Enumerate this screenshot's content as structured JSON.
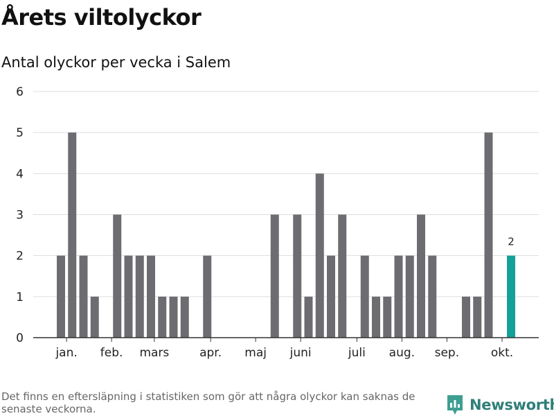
{
  "header": {
    "title": "Årets viltolyckor",
    "subtitle": "Antal olyckor per vecka i Salem"
  },
  "footer": {
    "note": "Det finns en eftersläpning i statistiken som gör att några olyckor kan saknas de senaste veckorna.",
    "brand": "Newsworthy"
  },
  "colors": {
    "bar": "#6d6c71",
    "highlight": "#16a09a",
    "brand": "#2f7f78",
    "grid": "#dddddd",
    "axis": "#333333"
  },
  "chart_data": {
    "type": "bar",
    "title": "Antal olyckor per vecka i Salem",
    "xlabel": "",
    "ylabel": "",
    "ylim": [
      0,
      6
    ],
    "yticks": [
      0,
      1,
      2,
      3,
      4,
      5,
      6
    ],
    "grid": true,
    "week_range": [
      1,
      43
    ],
    "values": [
      0,
      2,
      5,
      2,
      1,
      0,
      3,
      2,
      2,
      2,
      1,
      1,
      1,
      0,
      2,
      0,
      0,
      0,
      0,
      0,
      3,
      0,
      3,
      1,
      4,
      2,
      3,
      0,
      2,
      1,
      1,
      2,
      2,
      3,
      2,
      0,
      0,
      1,
      1,
      5,
      0,
      2
    ],
    "highlight_index": 41,
    "highlight_label": "2",
    "month_labels": [
      {
        "label": "jan.",
        "week": 2.5
      },
      {
        "label": "feb.",
        "week": 6.5
      },
      {
        "label": "mars",
        "week": 10.3
      },
      {
        "label": "apr.",
        "week": 15.3
      },
      {
        "label": "maj",
        "week": 19.3
      },
      {
        "label": "juni",
        "week": 23.3
      },
      {
        "label": "juli",
        "week": 28.3
      },
      {
        "label": "aug.",
        "week": 32.3
      },
      {
        "label": "sep.",
        "week": 36.3
      },
      {
        "label": "okt.",
        "week": 41.2
      }
    ]
  }
}
